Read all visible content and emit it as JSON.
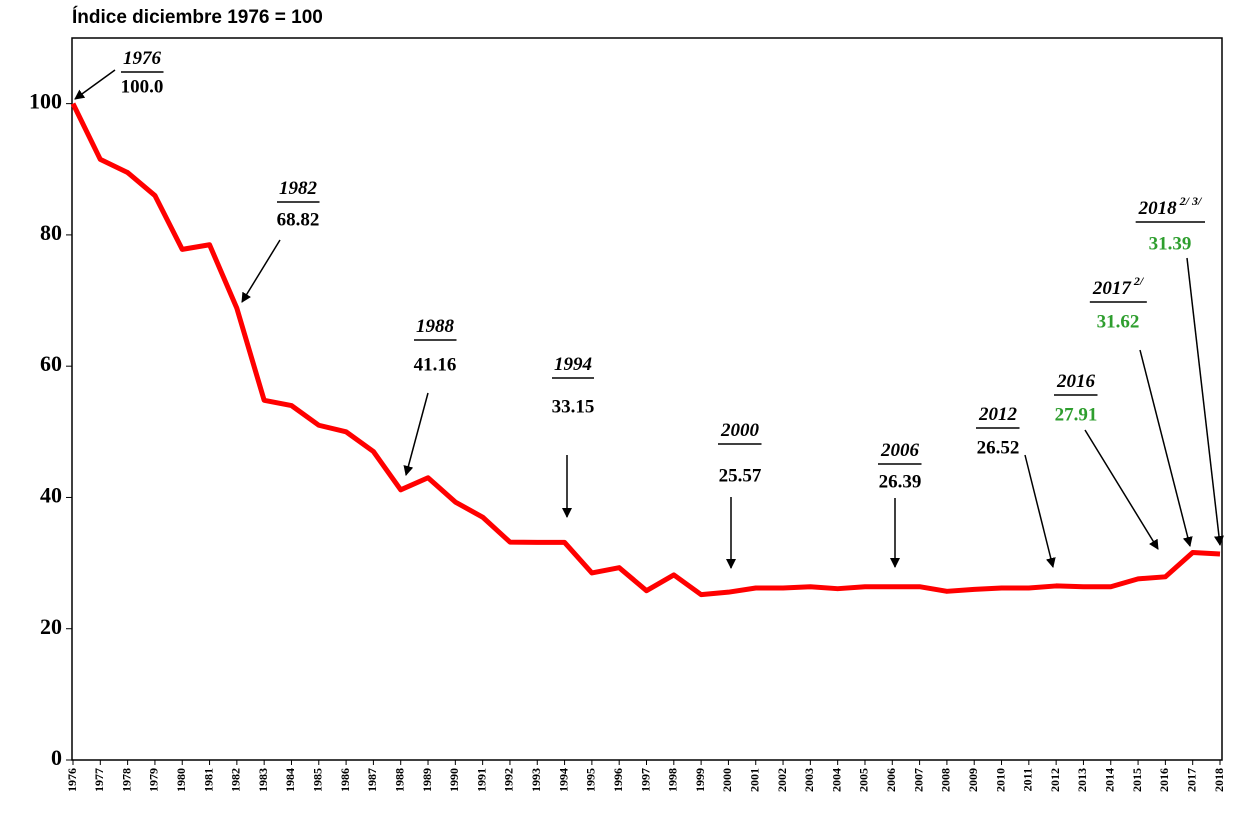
{
  "chart_data": {
    "type": "line",
    "title": "Índice diciembre 1976 = 100",
    "categories": [
      "1976",
      "1977",
      "1978",
      "1979",
      "1980",
      "1981",
      "1982",
      "1983",
      "1984",
      "1985",
      "1986",
      "1987",
      "1988",
      "1989",
      "1990",
      "1991",
      "1992",
      "1993",
      "1994",
      "1995",
      "1996",
      "1997",
      "1998",
      "1999",
      "2000",
      "2001",
      "2002",
      "2003",
      "2004",
      "2005",
      "2006",
      "2007",
      "2008",
      "2009",
      "2010",
      "2011",
      "2012",
      "2013",
      "2014",
      "2015",
      "2016",
      "2017",
      "2018"
    ],
    "series": [
      {
        "color": "#ff0000",
        "values": [
          100.0,
          91.5,
          89.5,
          86,
          77.8,
          78.5,
          68.82,
          54.8,
          54,
          51,
          50,
          47,
          41.16,
          43,
          39.3,
          37,
          33.2,
          33.15,
          33.15,
          28.5,
          29.3,
          25.8,
          28.2,
          25.2,
          25.57,
          26.2,
          26.2,
          26.4,
          26.1,
          26.4,
          26.39,
          26.4,
          25.7,
          26,
          26.2,
          26.2,
          26.52,
          26.4,
          26.4,
          27.6,
          27.91,
          31.62,
          31.39
        ]
      }
    ],
    "ylim": [
      0,
      110
    ],
    "yticks": [
      0,
      20,
      40,
      60,
      80,
      100
    ],
    "annotations": [
      {
        "label": "1976",
        "value_label": "100.0",
        "color": "#000000"
      },
      {
        "label": "1982",
        "value_label": "68.82",
        "color": "#000000"
      },
      {
        "label": "1988",
        "value_label": "41.16",
        "color": "#000000"
      },
      {
        "label": "1994",
        "value_label": "33.15",
        "color": "#000000"
      },
      {
        "label": "2000",
        "value_label": "25.57",
        "color": "#000000"
      },
      {
        "label": "2006",
        "value_label": "26.39",
        "color": "#000000"
      },
      {
        "label": "2012",
        "value_label": "26.52",
        "color": "#000000"
      },
      {
        "label": "2016",
        "value_label": "27.91",
        "color": "#2e9e2e"
      },
      {
        "label": "2017",
        "sup": "2/",
        "value_label": "31.62",
        "color": "#2e9e2e"
      },
      {
        "label": "2018",
        "sup": "2/ 3/",
        "value_label": "31.39",
        "color": "#2e9e2e"
      }
    ]
  }
}
